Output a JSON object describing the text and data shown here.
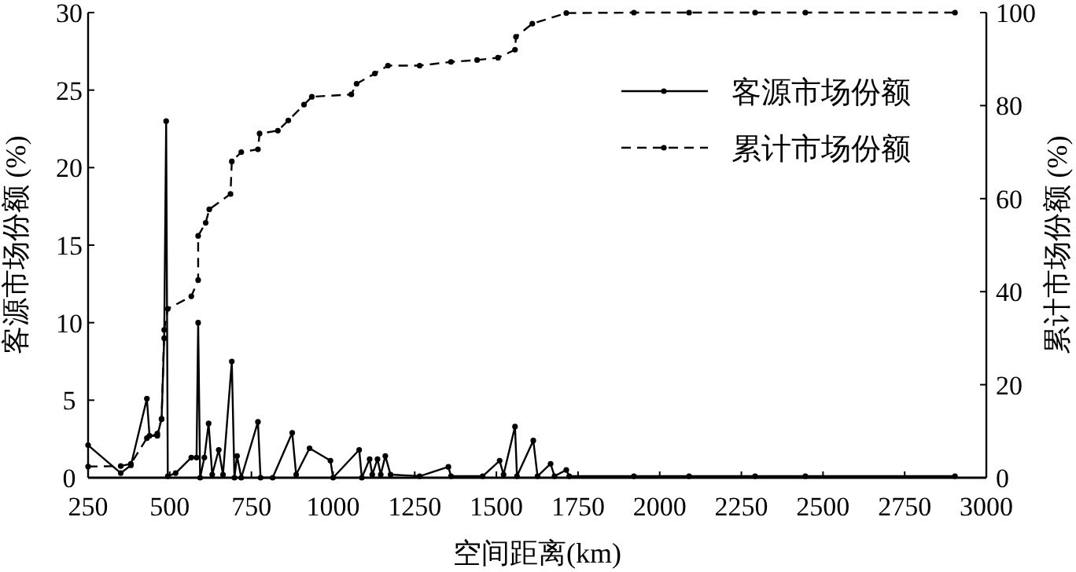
{
  "chart_data": {
    "type": "line",
    "xlabel": "空间距离(km)",
    "ylabel": "客源市场份额 (%)",
    "y2label": "累计市场份额 (%)",
    "xlim": [
      250,
      3000
    ],
    "xticks": [
      250,
      500,
      750,
      1000,
      1250,
      1500,
      1750,
      2000,
      2250,
      2500,
      2750,
      3000
    ],
    "ylim": [
      0,
      30
    ],
    "yticks": [
      0,
      5,
      10,
      15,
      20,
      25,
      30
    ],
    "y2lim": [
      0,
      100
    ],
    "y2ticks": [
      0,
      20,
      40,
      60,
      80,
      100
    ],
    "legend": "top right",
    "marker": "circle",
    "series": [
      {
        "name": "客源市场份额",
        "color": "#000000",
        "line_style": "solid",
        "x": [
          250,
          350,
          381,
          430,
          438,
          462,
          475,
          483,
          489,
          494,
          518,
          566,
          582,
          587,
          593,
          606,
          619,
          630,
          650,
          663,
          690,
          698,
          706,
          719,
          770,
          778,
          815,
          875,
          887,
          928,
          992,
          1000,
          1080,
          1088,
          1112,
          1120,
          1136,
          1146,
          1160,
          1176,
          1265,
          1353,
          1361,
          1458,
          1510,
          1522,
          1557,
          1563,
          1613,
          1626,
          1666,
          1678,
          1714,
          1723,
          1921,
          2090,
          2292,
          2446,
          2904
        ],
        "values": [
          2.1,
          0.3,
          0.8,
          5.1,
          2.7,
          2.7,
          3.8,
          9,
          23,
          0.1,
          0.3,
          1.3,
          1.3,
          10,
          0,
          1.3,
          3.5,
          0.2,
          1.8,
          0.2,
          7.5,
          0,
          1.4,
          0,
          3.6,
          0,
          0,
          2.9,
          0.2,
          1.9,
          1.1,
          0,
          1.8,
          0,
          1.2,
          0.2,
          1.2,
          0.2,
          1.4,
          0.2,
          0.1,
          0.7,
          0.1,
          0.1,
          1.1,
          0.2,
          3.3,
          0.1,
          2.4,
          0.1,
          0.9,
          0.1,
          0.5,
          0.1,
          0.1,
          0.1,
          0.1,
          0.1,
          0.1
        ]
      },
      {
        "name": "累计市场份额",
        "color": "#000000",
        "line_style": "dashed",
        "axis": "y2",
        "x": [
          250,
          350,
          381,
          430,
          462,
          475,
          483,
          494,
          566,
          587,
          587,
          610,
          621,
          686,
          690,
          719,
          770,
          775,
          831,
          863,
          911,
          935,
          1056,
          1072,
          1128,
          1168,
          1265,
          1361,
          1441,
          1505,
          1557,
          1560,
          1610,
          1714,
          1921,
          2090,
          2292,
          2446,
          2904
        ],
        "values": [
          2.4,
          2.5,
          3,
          8.5,
          9.5,
          12.6,
          31.8,
          36.3,
          39,
          42.5,
          52,
          54.8,
          57.7,
          61,
          68,
          70,
          70.6,
          74,
          74.6,
          76.8,
          80.2,
          81.9,
          82.4,
          84.7,
          86.9,
          88.6,
          88.6,
          89.4,
          89.8,
          90.3,
          92,
          94.8,
          97.6,
          99.9,
          100,
          100,
          100,
          100,
          100
        ]
      }
    ]
  }
}
